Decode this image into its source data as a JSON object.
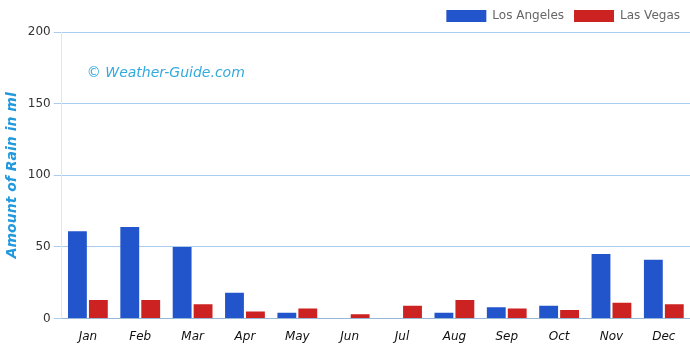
{
  "chart_data": {
    "type": "bar",
    "categories": [
      "Jan",
      "Feb",
      "Mar",
      "Apr",
      "May",
      "Jun",
      "Jul",
      "Aug",
      "Sep",
      "Oct",
      "Nov",
      "Dec"
    ],
    "series": [
      {
        "name": "Los Angeles",
        "color": "#2255cc",
        "values": [
          61,
          64,
          50,
          18,
          4,
          0,
          0,
          4,
          8,
          9,
          45,
          41
        ]
      },
      {
        "name": "Las Vegas",
        "color": "#cc2222",
        "values": [
          13,
          13,
          10,
          5,
          7,
          3,
          9,
          13,
          7,
          6,
          11,
          10
        ]
      }
    ],
    "ylabel": "Amount of Rain in ml",
    "ylim": [
      0,
      200
    ],
    "yticks": [
      0,
      50,
      100,
      150,
      200
    ],
    "grid": true,
    "legend": "upper right",
    "annotations": [
      {
        "text": "© Weather-Guide.com"
      }
    ]
  }
}
